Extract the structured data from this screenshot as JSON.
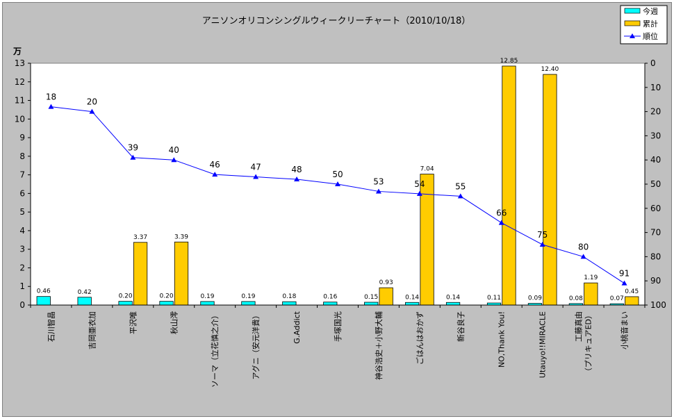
{
  "chart_data": {
    "type": "bar",
    "title": "アニソンオリコンシングルウィークリーチャート（2010/10/18）",
    "ylabel": "万",
    "ylim": [
      0,
      13
    ],
    "y2lim": [
      0,
      100
    ],
    "y2_inverted": true,
    "grid": false,
    "legend_position": "top-right",
    "categories": [
      "石川智晶",
      "吉岡亜衣加",
      "平沢唯",
      "秋山澪",
      "ソーマ（立花慎之介）",
      "アグニ（安元洋貴）",
      "G.Addict",
      "手塚国光",
      "神谷浩史＋小野大輔",
      "ごはんはおかず",
      "新谷良子",
      "NO,Thank You!",
      "Utauyo!!MIRACLE",
      "工藤真由\n（プリキュアED）",
      "小桃音まい"
    ],
    "series": [
      {
        "name": "今週",
        "type": "bar",
        "color": "#00ffff",
        "values": [
          0.46,
          0.42,
          0.2,
          0.2,
          0.19,
          0.19,
          0.18,
          0.16,
          0.15,
          0.14,
          0.14,
          0.11,
          0.09,
          0.08,
          0.07
        ],
        "labels": [
          "0.46",
          "0.42",
          "0.20",
          "0.20",
          "0.19",
          "0.19",
          "0.18",
          "0.16",
          "0.15",
          "0.14",
          "0.14",
          "0.11",
          "0.09",
          "0.08",
          "0.07"
        ]
      },
      {
        "name": "累計",
        "type": "bar",
        "color": "#ffcc00",
        "values": [
          null,
          null,
          3.37,
          3.39,
          null,
          null,
          null,
          null,
          0.93,
          7.04,
          null,
          12.85,
          12.4,
          1.19,
          0.45
        ],
        "labels": [
          "",
          "",
          "3.37",
          "3.39",
          "",
          "",
          "",
          "",
          "0.93",
          "7.04",
          "",
          "12.85",
          "12.40",
          "1.19",
          "0.45"
        ]
      },
      {
        "name": "順位",
        "type": "line",
        "axis": "secondary",
        "color": "#0000ff",
        "values": [
          18,
          20,
          39,
          40,
          46,
          47,
          48,
          50,
          53,
          54,
          55,
          66,
          75,
          80,
          91
        ]
      }
    ]
  }
}
